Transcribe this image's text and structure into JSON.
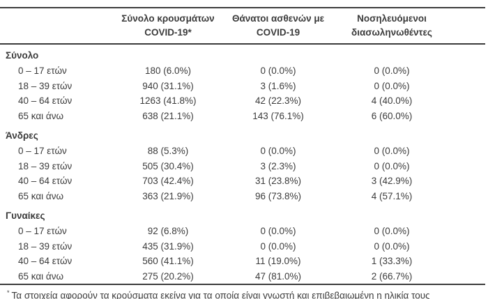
{
  "colors": {
    "text": "#3b3b3b",
    "rule_dark": "#3b3b3b",
    "rule_light": "#c9c9c9",
    "background": "#ffffff"
  },
  "table": {
    "headers": {
      "cases": {
        "line1": "Σύνολο κρουσμάτων",
        "line2": "COVID-19*"
      },
      "deaths": {
        "line1": "Θάνατοι ασθενών με",
        "line2": "COVID-19"
      },
      "intubated": {
        "line1": "Νοσηλευόμενοι",
        "line2": "διασωληνωθέντες"
      }
    },
    "sections": [
      {
        "title": "Σύνολο",
        "rows": [
          {
            "label": "0 – 17 ετών",
            "cases": "180 (6.0%)",
            "deaths": "0 (0.0%)",
            "intubated": "0 (0.0%)"
          },
          {
            "label": "18 – 39 ετών",
            "cases": "940 (31.1%)",
            "deaths": "3 (1.6%)",
            "intubated": "0 (0.0%)"
          },
          {
            "label": "40 – 64 ετών",
            "cases": "1263 (41.8%)",
            "deaths": "42 (22.3%)",
            "intubated": "4 (40.0%)"
          },
          {
            "label": "65 και άνω",
            "cases": "638 (21.1%)",
            "deaths": "143 (76.1%)",
            "intubated": "6 (60.0%)"
          }
        ]
      },
      {
        "title": "Άνδρες",
        "rows": [
          {
            "label": "0 – 17 ετών",
            "cases": "88 (5.3%)",
            "deaths": "0 (0.0%)",
            "intubated": "0 (0.0%)"
          },
          {
            "label": "18 – 39 ετών",
            "cases": "505 (30.4%)",
            "deaths": "3 (2.3%)",
            "intubated": "0 (0.0%)"
          },
          {
            "label": "40 – 64 ετών",
            "cases": "703 (42.4%)",
            "deaths": "31 (23.8%)",
            "intubated": "3 (42.9%)"
          },
          {
            "label": "65 και άνω",
            "cases": "363 (21.9%)",
            "deaths": "96 (73.8%)",
            "intubated": "4 (57.1%)"
          }
        ]
      },
      {
        "title": "Γυναίκες",
        "rows": [
          {
            "label": "0 – 17 ετών",
            "cases": "92 (6.8%)",
            "deaths": "0 (0.0%)",
            "intubated": "0 (0.0%)"
          },
          {
            "label": "18 – 39 ετών",
            "cases": "435 (31.9%)",
            "deaths": "0 (0.0%)",
            "intubated": "0 (0.0%)"
          },
          {
            "label": "40 – 64 ετών",
            "cases": "560 (41.1%)",
            "deaths": "11 (19.0%)",
            "intubated": "1 (33.3%)"
          },
          {
            "label": "65 και άνω",
            "cases": "275 (20.2%)",
            "deaths": "47 (81.0%)",
            "intubated": "2 (66.7%)"
          }
        ]
      }
    ],
    "footnote": {
      "marker": "*",
      "text": "Τα στοιχεία αφορούν τα κρούσματα εκείνα για τα οποία είναι γνωστή και επιβεβαιωμένη η ηλικία τους"
    }
  }
}
